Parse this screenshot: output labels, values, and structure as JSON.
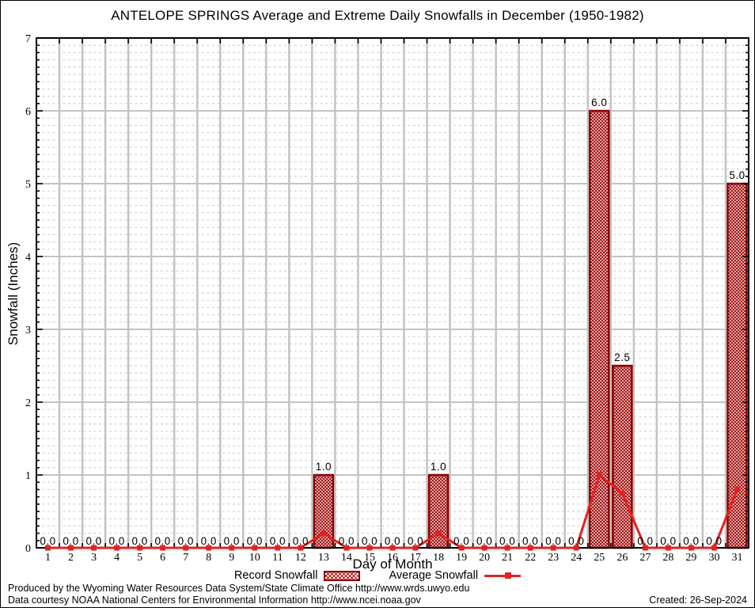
{
  "title": "ANTELOPE SPRINGS Average and Extreme Daily Snowfalls in December (1950-1982)",
  "chart_data": {
    "type": "bar",
    "title": "ANTELOPE SPRINGS Average and Extreme Daily Snowfalls in December (1950-1982)",
    "xlabel": "Day of Month",
    "ylabel": "Snowfall (Inches)",
    "x": [
      1,
      2,
      3,
      4,
      5,
      6,
      7,
      8,
      9,
      10,
      11,
      12,
      13,
      14,
      15,
      16,
      17,
      18,
      19,
      20,
      21,
      22,
      23,
      24,
      25,
      26,
      27,
      28,
      29,
      30,
      31
    ],
    "series": [
      {
        "name": "Record Snowfall",
        "type": "bar",
        "values": [
          0,
          0,
          0,
          0,
          0,
          0,
          0,
          0,
          0,
          0,
          0,
          0,
          1.0,
          0,
          0,
          0,
          0,
          1.0,
          0,
          0,
          0,
          0,
          0,
          0,
          6.0,
          2.5,
          0,
          0,
          0,
          0,
          5.0
        ]
      },
      {
        "name": "Average Snowfall",
        "type": "line",
        "values": [
          0,
          0,
          0,
          0,
          0,
          0,
          0,
          0,
          0,
          0,
          0,
          0,
          0.2,
          0,
          0,
          0,
          0,
          0.2,
          0,
          0,
          0,
          0,
          0,
          0,
          1.0,
          0.75,
          0,
          0,
          0,
          0,
          0.8
        ]
      }
    ],
    "bar_labels": [
      "0.0",
      "0.0",
      "0.0",
      "0.0",
      "0.0",
      "0.0",
      "0.0",
      "0.0",
      "0.0",
      "0.0",
      "0.0",
      "0.0",
      "1.0",
      "0.0",
      "0.0",
      "0.0",
      "0.0",
      "1.0",
      "0.0",
      "0.0",
      "0.0",
      "0.0",
      "0.0",
      "0.0",
      "6.0",
      "2.5",
      "0.0",
      "0.0",
      "0.0",
      "0.0",
      "5.0"
    ],
    "ylim": [
      0,
      7
    ],
    "y_ticks": [
      0,
      1,
      2,
      3,
      4,
      5,
      6,
      7
    ],
    "y_minor_step": 0.1,
    "grid": true,
    "legend_position": "bottom-center",
    "colors": {
      "bar_border": "#8b0000",
      "bar_hatch": "#a31111",
      "line": "#e62020",
      "grid_major": "#c3c3c3",
      "grid_minor": "#c9c9c9",
      "axis": "#000000"
    }
  },
  "legend": {
    "items": [
      {
        "label": "Record Snowfall",
        "swatch": "hatched-bar"
      },
      {
        "label": "Average Snowfall",
        "swatch": "red-line-marker"
      }
    ]
  },
  "footer": {
    "line1": "Produced by the Wyoming Water Resources Data System/State Climate Office http://www.wrds.uwyo.edu",
    "line2": "Data courtesy NOAA National Centers for Environmental Information http://www.ncei.noaa.gov",
    "created": "Created: 26-Sep-2024"
  }
}
